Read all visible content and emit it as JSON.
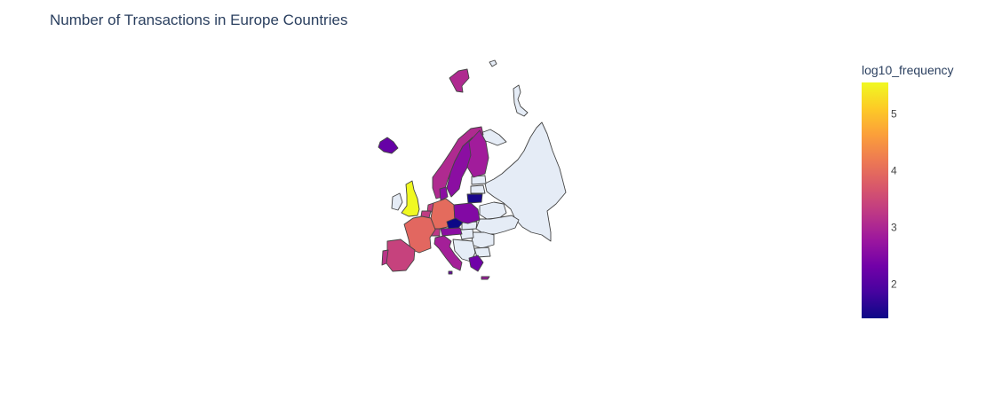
{
  "title": "Number of Transactions in Europe Countries",
  "chart_data": {
    "type": "choropleth",
    "title": "Number of Transactions in Europe Countries",
    "scope": "europe",
    "color_scale": "Plasma",
    "colorbar": {
      "title": "log10_frequency",
      "range": [
        1.4,
        5.55
      ],
      "ticks": [
        "2",
        "3",
        "4",
        "5"
      ]
    },
    "no_data_color": "#e5ecf6",
    "values": [
      {
        "country": "United Kingdom",
        "log10_frequency": 5.55
      },
      {
        "country": "Germany",
        "log10_frequency": 3.98
      },
      {
        "country": "France",
        "log10_frequency": 3.92
      },
      {
        "country": "Spain",
        "log10_frequency": 3.4
      },
      {
        "country": "Portugal",
        "log10_frequency": 3.2
      },
      {
        "country": "Belgium",
        "log10_frequency": 3.3
      },
      {
        "country": "Netherlands",
        "log10_frequency": 3.35
      },
      {
        "country": "Switzerland",
        "log10_frequency": 3.25
      },
      {
        "country": "Italy",
        "log10_frequency": 2.9
      },
      {
        "country": "Austria",
        "log10_frequency": 2.6
      },
      {
        "country": "Norway",
        "log10_frequency": 3.05
      },
      {
        "country": "Sweden",
        "log10_frequency": 2.6
      },
      {
        "country": "Finland",
        "log10_frequency": 2.85
      },
      {
        "country": "Denmark",
        "log10_frequency": 2.6
      },
      {
        "country": "Poland",
        "log10_frequency": 2.5
      },
      {
        "country": "Czech Republic",
        "log10_frequency": 1.4
      },
      {
        "country": "Lithuania",
        "log10_frequency": 1.5
      },
      {
        "country": "Greece",
        "log10_frequency": 2.3
      },
      {
        "country": "Iceland",
        "log10_frequency": 2.2
      },
      {
        "country": "Cyprus",
        "log10_frequency": 2.8
      },
      {
        "country": "Malta",
        "log10_frequency": 2.2
      }
    ]
  }
}
